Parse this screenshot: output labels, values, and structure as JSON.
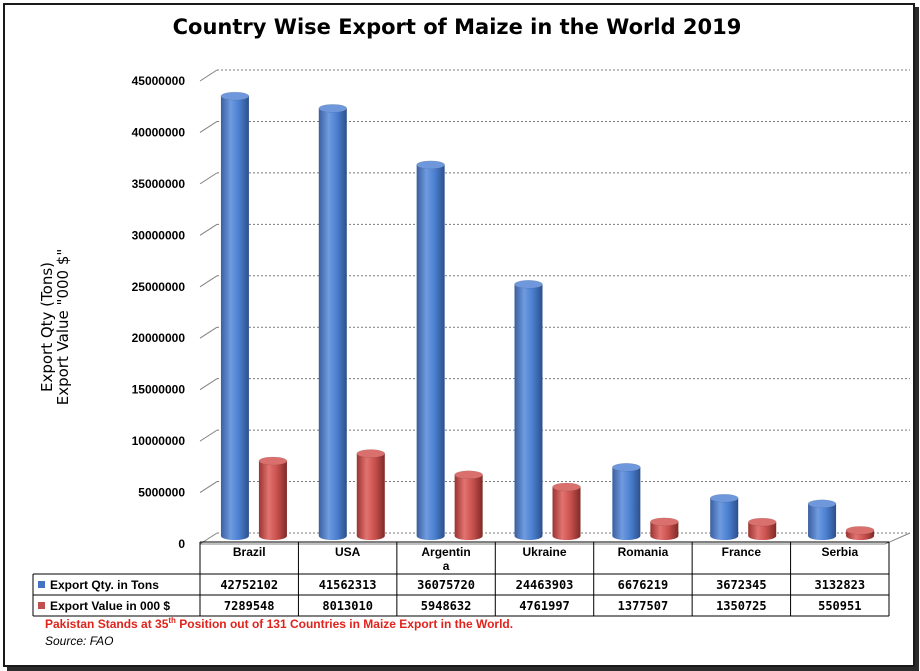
{
  "chart_data": {
    "type": "bar",
    "title": "Country Wise Export of Maize in the World 2019",
    "ylabel_line1": "Export Qty  (Tons)",
    "ylabel_line2": "Export Value \"000 $\"",
    "ylim": [
      0,
      45000000
    ],
    "yticks": [
      "0",
      "5000000",
      "10000000",
      "15000000",
      "20000000",
      "25000000",
      "30000000",
      "35000000",
      "40000000",
      "45000000"
    ],
    "grid": true,
    "categories": [
      "Brazil",
      "USA",
      "Argentina",
      "Ukraine",
      "Romania",
      "France",
      "Serbia"
    ],
    "category_labels": [
      [
        "Brazil"
      ],
      [
        "USA"
      ],
      [
        "Argentin",
        "a"
      ],
      [
        "Ukraine"
      ],
      [
        "Romania"
      ],
      [
        "France"
      ],
      [
        "Serbia"
      ]
    ],
    "series": [
      {
        "name": "Export Qty. in Tons",
        "color": "#4472c4",
        "values": [
          42752102,
          41562313,
          36075720,
          24463903,
          6676219,
          3672345,
          3132823
        ],
        "labels": [
          "42752102",
          "41562313",
          "36075720",
          "24463903",
          "6676219",
          "3672345",
          "3132823"
        ]
      },
      {
        "name": "Export Value in 000 $",
        "color": "#c0504d",
        "values": [
          7289548,
          8013010,
          5948632,
          4761997,
          1377507,
          1350725,
          550951
        ],
        "labels": [
          "7289548",
          "8013010",
          "5948632",
          "4761997",
          "1377507",
          "1350725",
          "550951"
        ]
      }
    ],
    "data_table": true
  },
  "notes": {
    "pakistan_prefix": "Pakistan Stands at 35",
    "pakistan_sup": "th",
    "pakistan_suffix": " Position out of 131 Countries in Maize Export in the World.",
    "source": "Source: FAO"
  }
}
